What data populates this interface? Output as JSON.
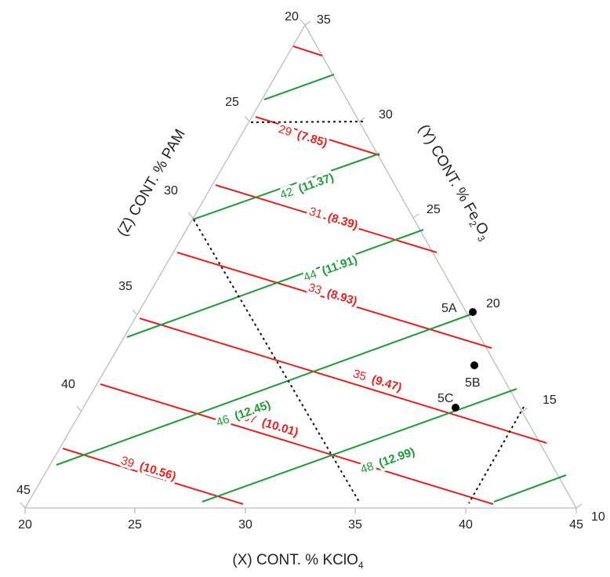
{
  "chart_data": {
    "type": "ternary",
    "axes": {
      "x": {
        "label": "(X) CONT. % KClO",
        "label_sub": "4",
        "ticks": [
          20,
          25,
          30,
          35,
          40,
          45
        ]
      },
      "y": {
        "label_parts": [
          "(Y) CONT. % Fe",
          "2",
          "O",
          "3"
        ],
        "ticks": [
          35,
          30,
          25,
          20,
          15,
          10
        ]
      },
      "z": {
        "label": "(Z) CONT. % PAM",
        "ticks": [
          20,
          25,
          30,
          35,
          40,
          45
        ]
      }
    },
    "colors": {
      "red": "#e8201c",
      "green": "#1e9a37",
      "frame": "#bdbdbd",
      "dashed": "#111111"
    },
    "red_isolines": [
      {
        "value": "29",
        "secondary": "(7.85)",
        "labeled": true
      },
      {
        "value": "31",
        "secondary": "(8.39)",
        "labeled": true
      },
      {
        "value": "33",
        "secondary": "(8.93)",
        "labeled": true
      },
      {
        "value": "35",
        "secondary": "(9.47)",
        "labeled": true
      },
      {
        "value": "37",
        "secondary": "(10.01)",
        "labeled": true
      },
      {
        "value": "39",
        "secondary": "(10.56)",
        "labeled": true
      },
      {
        "value": "",
        "secondary": "",
        "labeled": false
      }
    ],
    "green_isolines": [
      {
        "value": "42",
        "secondary": "(11.37)",
        "labeled": true
      },
      {
        "value": "44",
        "secondary": "(11.91)",
        "labeled": true
      },
      {
        "value": "46",
        "secondary": "(12.45)",
        "labeled": true
      },
      {
        "value": "48",
        "secondary": "(12.99)",
        "labeled": true
      },
      {
        "value": "",
        "secondary": "",
        "labeled": false
      },
      {
        "value": "",
        "secondary": "",
        "labeled": false
      }
    ],
    "points": [
      {
        "label": "5A",
        "x": 40.2,
        "y": 19.8,
        "z": 40.0
      },
      {
        "label": "5B",
        "x": 40.8,
        "y": 17.2,
        "z": 42.0
      },
      {
        "label": "5C",
        "x": 39.5,
        "y": 15.5,
        "z": 45.0
      }
    ]
  }
}
